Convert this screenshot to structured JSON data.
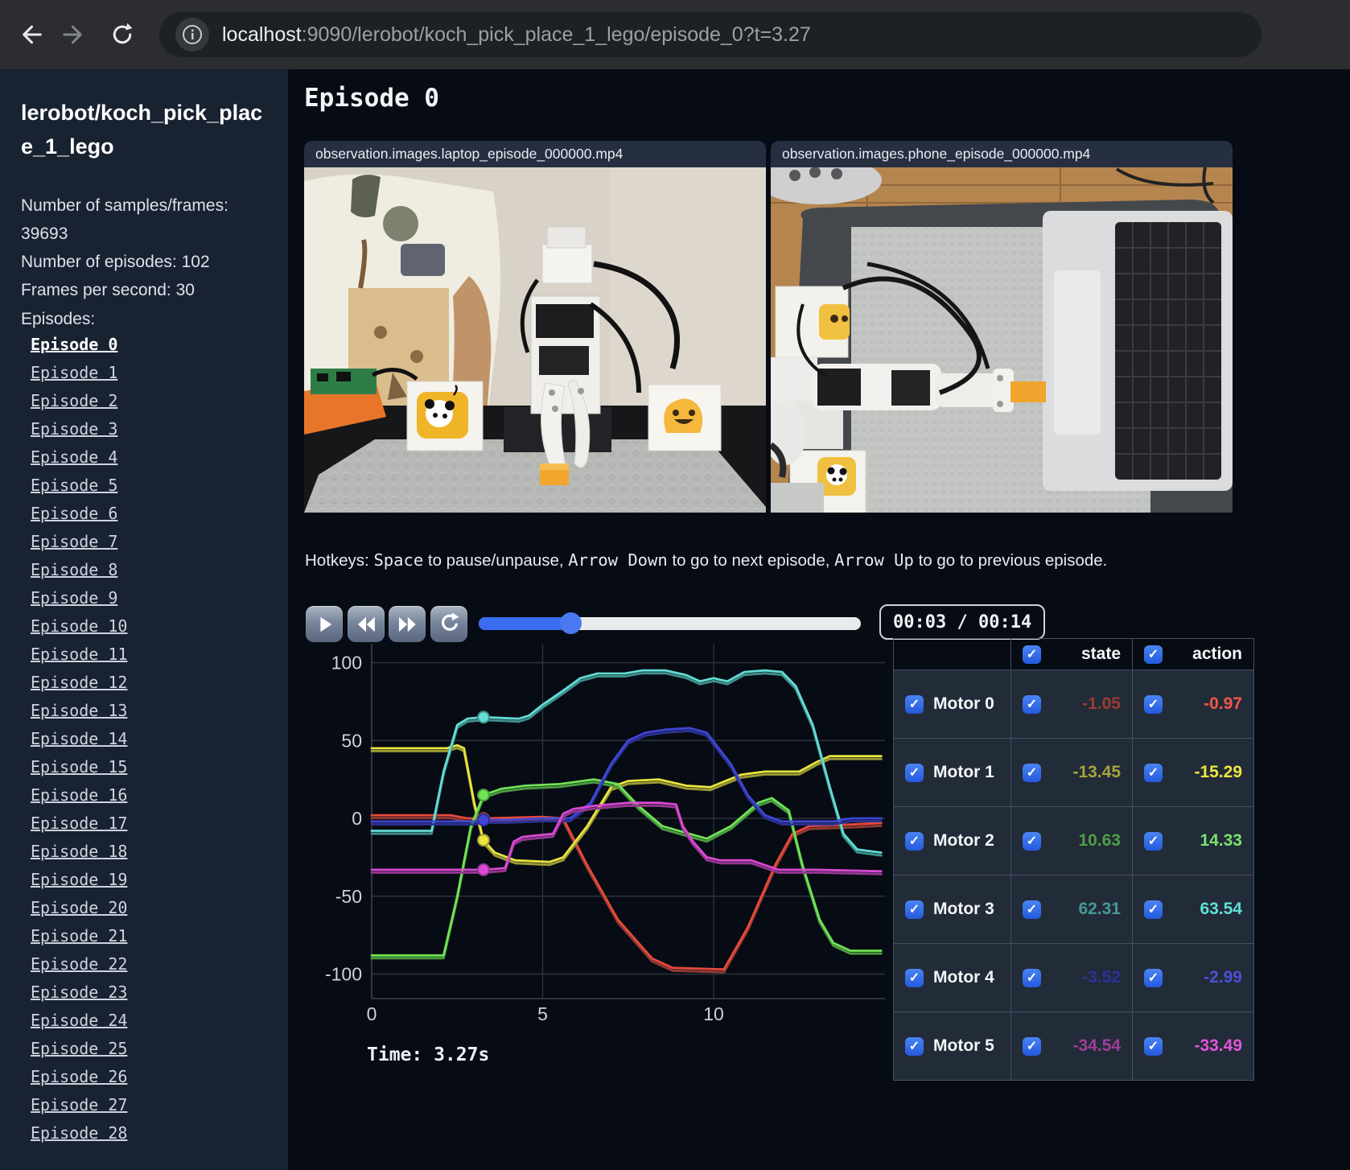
{
  "browser": {
    "url_host": "localhost",
    "url_rest": ":9090/lerobot/koch_pick_place_1_lego/episode_0?t=3.27",
    "icons": [
      "back",
      "forward",
      "reload",
      "site-info"
    ]
  },
  "sidebar": {
    "title": "lerobot/koch_pick_place_1_lego",
    "stats": [
      "Number of samples/frames: 39693",
      "Number of episodes: 102",
      "Frames per second: 30"
    ],
    "episodes_label": "Episodes:",
    "active_episode": "Episode 0",
    "episodes": [
      "Episode 0",
      "Episode 1",
      "Episode 2",
      "Episode 3",
      "Episode 4",
      "Episode 5",
      "Episode 6",
      "Episode 7",
      "Episode 8",
      "Episode 9",
      "Episode 10",
      "Episode 11",
      "Episode 12",
      "Episode 13",
      "Episode 14",
      "Episode 15",
      "Episode 16",
      "Episode 17",
      "Episode 18",
      "Episode 19",
      "Episode 20",
      "Episode 21",
      "Episode 22",
      "Episode 23",
      "Episode 24",
      "Episode 25",
      "Episode 26",
      "Episode 27",
      "Episode 28"
    ]
  },
  "main": {
    "heading": "Episode 0",
    "videos": [
      {
        "title": "observation.images.laptop_episode_000000.mp4"
      },
      {
        "title": "observation.images.phone_episode_000000.mp4"
      }
    ],
    "hotkeys": {
      "segments": [
        {
          "t": "Hotkeys: ",
          "mono": false
        },
        {
          "t": "Space",
          "mono": true
        },
        {
          "t": " to pause/unpause, ",
          "mono": false
        },
        {
          "t": "Arrow Down",
          "mono": true
        },
        {
          "t": " to go to next episode, ",
          "mono": false
        },
        {
          "t": "Arrow Up",
          "mono": true
        },
        {
          "t": " to go to previous episode.",
          "mono": false
        }
      ]
    },
    "player": {
      "buttons": [
        "play",
        "rewind",
        "fast-forward",
        "loop"
      ],
      "progress_pct": 24,
      "time_display": "00:03 / 00:14",
      "accent_color": "#3a6cf2"
    },
    "time_label": "Time: 3.27s"
  },
  "chart_data": {
    "type": "line",
    "title": "",
    "xlabel": "",
    "ylabel": "",
    "xlim": [
      0,
      15
    ],
    "ylim": [
      -115,
      115
    ],
    "xticks": [
      0,
      5,
      10
    ],
    "yticks": [
      100,
      50,
      0,
      -50,
      -100
    ],
    "grid": true,
    "legend_position": "none",
    "current_time": 3.27,
    "series": [
      {
        "name": "Motor 0",
        "color_action": "#e8493c",
        "color_state": "#8f3a33",
        "marker_value": 0,
        "points": [
          [
            0,
            2
          ],
          [
            2.3,
            2
          ],
          [
            2.8,
            0
          ],
          [
            3.27,
            0
          ],
          [
            5,
            1
          ],
          [
            5.6,
            0
          ],
          [
            6.3,
            -30
          ],
          [
            7.2,
            -65
          ],
          [
            8.2,
            -90
          ],
          [
            8.8,
            -96
          ],
          [
            10.3,
            -97
          ],
          [
            11,
            -70
          ],
          [
            11.8,
            -30
          ],
          [
            12.3,
            -10
          ],
          [
            12.8,
            -5
          ],
          [
            14,
            -4
          ],
          [
            14.9,
            -3
          ]
        ]
      },
      {
        "name": "Motor 1",
        "color_action": "#e9e53e",
        "color_state": "#9b9a35",
        "marker_value": -14,
        "points": [
          [
            0,
            45
          ],
          [
            2.2,
            45
          ],
          [
            2.5,
            47
          ],
          [
            2.7,
            45
          ],
          [
            3.0,
            10
          ],
          [
            3.27,
            -14
          ],
          [
            3.6,
            -22
          ],
          [
            4.2,
            -27
          ],
          [
            5.2,
            -28
          ],
          [
            5.6,
            -25
          ],
          [
            6.3,
            -5
          ],
          [
            7,
            20
          ],
          [
            7.5,
            24
          ],
          [
            8.4,
            25
          ],
          [
            9.2,
            21
          ],
          [
            9.9,
            20
          ],
          [
            10.8,
            28
          ],
          [
            11.5,
            30
          ],
          [
            12.5,
            30
          ],
          [
            13,
            36
          ],
          [
            13.4,
            40
          ],
          [
            14.9,
            40
          ]
        ]
      },
      {
        "name": "Motor 2",
        "color_action": "#71e356",
        "color_state": "#4b9b41",
        "marker_value": 15,
        "points": [
          [
            0,
            -88
          ],
          [
            2.1,
            -88
          ],
          [
            2.5,
            -50
          ],
          [
            2.9,
            -5
          ],
          [
            3.27,
            15
          ],
          [
            3.8,
            19
          ],
          [
            4.5,
            21
          ],
          [
            5.5,
            22
          ],
          [
            6.5,
            25
          ],
          [
            7.2,
            22
          ],
          [
            7.8,
            8
          ],
          [
            8.5,
            -5
          ],
          [
            9.3,
            -10
          ],
          [
            9.8,
            -13
          ],
          [
            10.5,
            -5
          ],
          [
            11.3,
            10
          ],
          [
            11.7,
            13
          ],
          [
            12.2,
            5
          ],
          [
            12.6,
            -30
          ],
          [
            13.1,
            -65
          ],
          [
            13.5,
            -80
          ],
          [
            14,
            -85
          ],
          [
            14.9,
            -85
          ]
        ]
      },
      {
        "name": "Motor 3",
        "color_action": "#63dcd6",
        "color_state": "#3e8f8b",
        "marker_value": 65,
        "points": [
          [
            0,
            -8
          ],
          [
            1.75,
            -8
          ],
          [
            2.1,
            30
          ],
          [
            2.5,
            60
          ],
          [
            2.8,
            64
          ],
          [
            3.27,
            65
          ],
          [
            4.3,
            64
          ],
          [
            4.6,
            66
          ],
          [
            5,
            73
          ],
          [
            5.6,
            82
          ],
          [
            6.1,
            90
          ],
          [
            6.6,
            93
          ],
          [
            7.4,
            93
          ],
          [
            7.9,
            95
          ],
          [
            8.6,
            95
          ],
          [
            9.2,
            92
          ],
          [
            9.6,
            88
          ],
          [
            10,
            90
          ],
          [
            10.4,
            88
          ],
          [
            10.9,
            94
          ],
          [
            11.5,
            95
          ],
          [
            12,
            94
          ],
          [
            12.4,
            85
          ],
          [
            12.9,
            60
          ],
          [
            13.4,
            20
          ],
          [
            13.8,
            -10
          ],
          [
            14.2,
            -20
          ],
          [
            14.9,
            -22
          ]
        ]
      },
      {
        "name": "Motor 4",
        "color_action": "#3f46d6",
        "color_state": "#2b3193",
        "marker_value": -1,
        "points": [
          [
            0,
            -2
          ],
          [
            3,
            -2
          ],
          [
            3.27,
            -1
          ],
          [
            4,
            -1
          ],
          [
            5,
            0
          ],
          [
            5.8,
            0
          ],
          [
            6.4,
            10
          ],
          [
            7,
            35
          ],
          [
            7.5,
            50
          ],
          [
            8,
            55
          ],
          [
            8.6,
            57
          ],
          [
            9.3,
            58
          ],
          [
            9.8,
            55
          ],
          [
            10.5,
            35
          ],
          [
            11,
            15
          ],
          [
            11.5,
            2
          ],
          [
            12,
            -2
          ],
          [
            13.5,
            -2
          ],
          [
            14,
            0
          ],
          [
            14.9,
            0
          ]
        ]
      },
      {
        "name": "Motor 5",
        "color_action": "#da49d4",
        "color_state": "#93378f",
        "marker_value": -33,
        "points": [
          [
            0,
            -33
          ],
          [
            3,
            -33
          ],
          [
            3.27,
            -33
          ],
          [
            3.9,
            -32
          ],
          [
            4.15,
            -15
          ],
          [
            4.4,
            -12
          ],
          [
            4.8,
            -11
          ],
          [
            5.3,
            -10
          ],
          [
            5.6,
            3
          ],
          [
            5.9,
            6
          ],
          [
            6.5,
            8
          ],
          [
            7.5,
            10
          ],
          [
            8.4,
            10
          ],
          [
            8.9,
            9
          ],
          [
            9.1,
            -5
          ],
          [
            9.4,
            -15
          ],
          [
            9.8,
            -25
          ],
          [
            10.2,
            -27
          ],
          [
            11.1,
            -27
          ],
          [
            11.5,
            -30
          ],
          [
            11.9,
            -33
          ],
          [
            13,
            -33
          ],
          [
            14.9,
            -34
          ]
        ]
      }
    ]
  },
  "table": {
    "headers": {
      "state": "state",
      "action": "action"
    },
    "checkbox_color": "#2e6ae6",
    "rows": [
      {
        "label": "Motor 0",
        "state": "-1.05",
        "action": "-0.97",
        "state_color": "#9c3c31",
        "action_color": "#f25749"
      },
      {
        "label": "Motor 1",
        "state": "-13.45",
        "action": "-15.29",
        "state_color": "#a7a53b",
        "action_color": "#ece73f"
      },
      {
        "label": "Motor 2",
        "state": "10.63",
        "action": "14.33",
        "state_color": "#4f9f45",
        "action_color": "#79e36d"
      },
      {
        "label": "Motor 3",
        "state": "62.31",
        "action": "63.54",
        "state_color": "#479a94",
        "action_color": "#5fe0d5"
      },
      {
        "label": "Motor 4",
        "state": "-3.52",
        "action": "-2.99",
        "state_color": "#2c339c",
        "action_color": "#4a52d4"
      },
      {
        "label": "Motor 5",
        "state": "-34.54",
        "action": "-33.49",
        "state_color": "#9f3f9a",
        "action_color": "#e156da"
      }
    ]
  }
}
